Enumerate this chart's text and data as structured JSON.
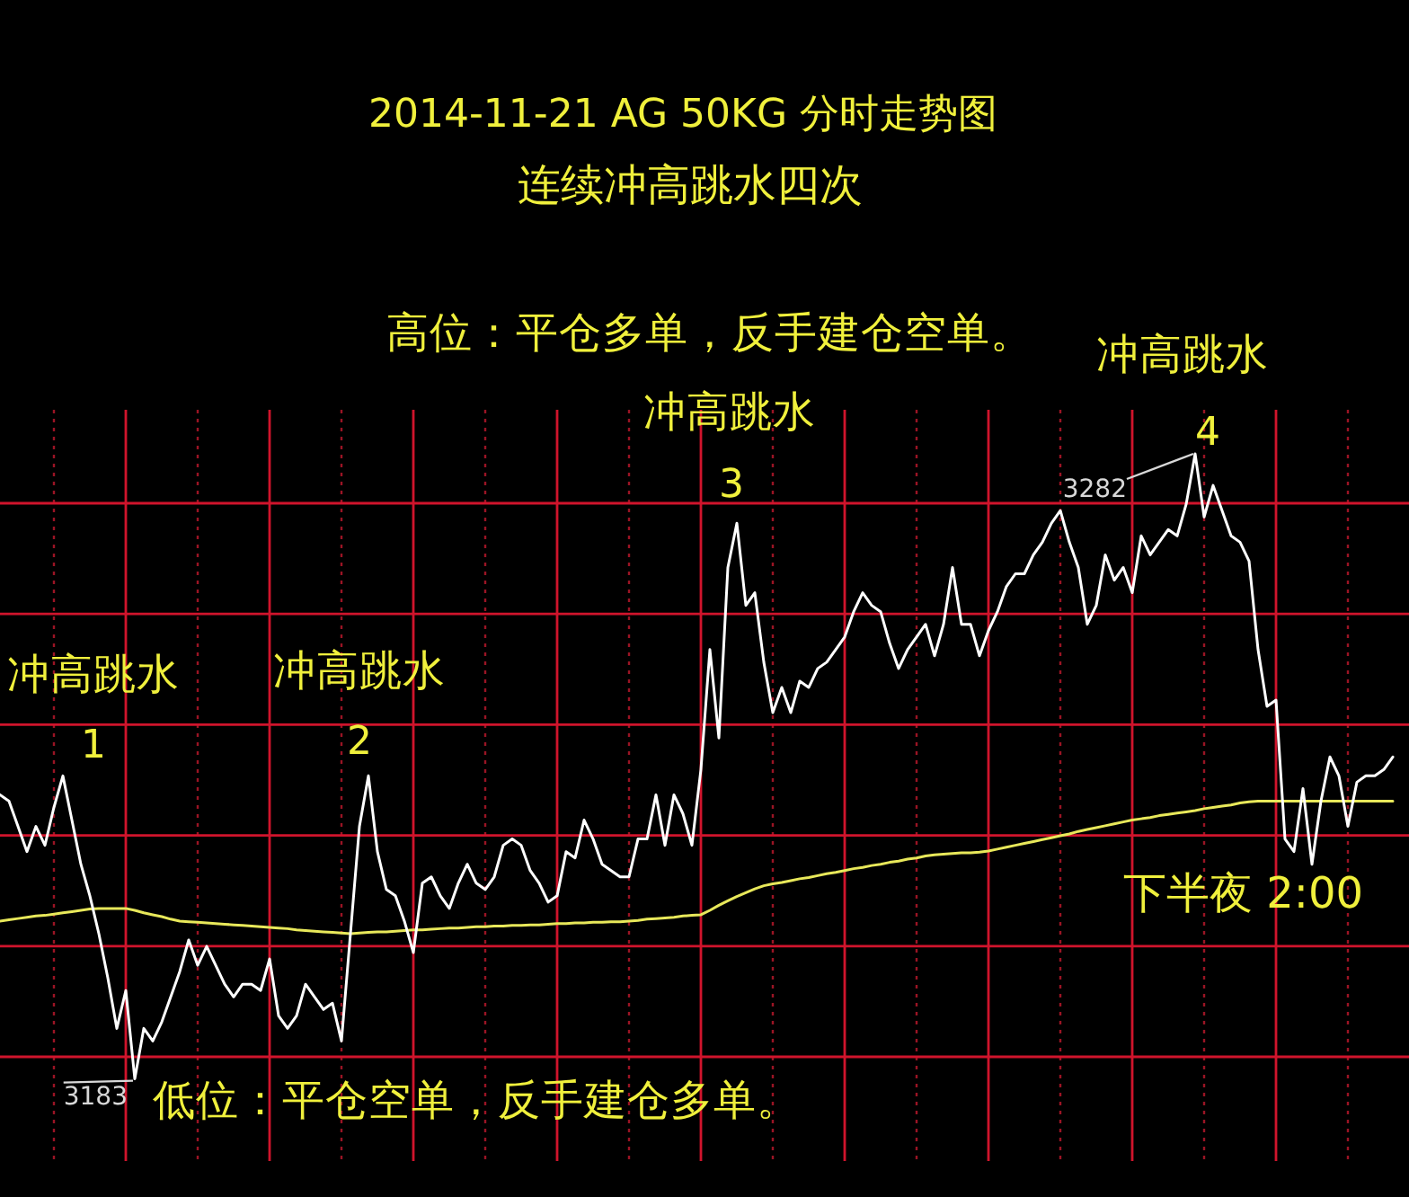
{
  "chart_data": {
    "type": "line",
    "title": "2014-11-21 AG 50KG 分时走势图",
    "subtitle": "连续冲高跳水四次",
    "grid": true,
    "categories": [
      null,
      null,
      null,
      null,
      null,
      null,
      null,
      null,
      null,
      null,
      null,
      null,
      null,
      null,
      null,
      null,
      null,
      null,
      null,
      null,
      null,
      null,
      null,
      null,
      null,
      null,
      null,
      null,
      null,
      null,
      null,
      null,
      null,
      null,
      null,
      null,
      null,
      null,
      null,
      null,
      null,
      null,
      null,
      null,
      null,
      null,
      null,
      null,
      null,
      null,
      null,
      null,
      null,
      null,
      null,
      null,
      null,
      null,
      null,
      null,
      null,
      null,
      null,
      null,
      null,
      null,
      null,
      null,
      null,
      null,
      null,
      null,
      null,
      null,
      null,
      null,
      null,
      null,
      null,
      null,
      null,
      null,
      null,
      null,
      null,
      null,
      null,
      null,
      null,
      null,
      null,
      null,
      null,
      null,
      null,
      null,
      null,
      null,
      null,
      null,
      null,
      null,
      null,
      null,
      null,
      null,
      null,
      null,
      null,
      null,
      null,
      null,
      null,
      null,
      null,
      null,
      null,
      null,
      null,
      null,
      null,
      null,
      null,
      null,
      null,
      null,
      null,
      null,
      null,
      null,
      null,
      null,
      null,
      null,
      null,
      null,
      null,
      null,
      null,
      null,
      null,
      null,
      null,
      null,
      null,
      null,
      null,
      null,
      null,
      null,
      null,
      null,
      null,
      null,
      null,
      null
    ],
    "series": [
      {
        "color": "#e8e85a",
        "values": [
          3208,
          3208.2,
          3208.4,
          3208.6,
          3208.8,
          3208.9,
          3209.1,
          3209.3,
          3209.5,
          3209.7,
          3209.9,
          3210,
          3210,
          3210,
          3210,
          3209.7,
          3209.3,
          3209,
          3208.7,
          3208.3,
          3208,
          3207.9,
          3207.8,
          3207.7,
          3207.6,
          3207.5,
          3207.4,
          3207.3,
          3207.2,
          3207.1,
          3207,
          3206.9,
          3206.8,
          3206.6,
          3206.5,
          3206.4,
          3206.3,
          3206.2,
          3206.1,
          3206,
          3206.1,
          3206.2,
          3206.3,
          3206.3,
          3206.4,
          3206.5,
          3206.6,
          3206.6,
          3206.7,
          3206.8,
          3206.9,
          3206.9,
          3207,
          3207.1,
          3207.1,
          3207.2,
          3207.2,
          3207.3,
          3207.3,
          3207.4,
          3207.4,
          3207.5,
          3207.6,
          3207.6,
          3207.7,
          3207.7,
          3207.8,
          3207.8,
          3207.9,
          3207.9,
          3208,
          3208.1,
          3208.3,
          3208.4,
          3208.5,
          3208.6,
          3208.8,
          3208.9,
          3209,
          3209.7,
          3210.5,
          3211.2,
          3211.9,
          3212.5,
          3213.1,
          3213.6,
          3213.9,
          3214.1,
          3214.4,
          3214.7,
          3214.9,
          3215.2,
          3215.5,
          3215.7,
          3216,
          3216.3,
          3216.5,
          3216.8,
          3217,
          3217.3,
          3217.5,
          3217.8,
          3218,
          3218.3,
          3218.5,
          3218.6,
          3218.7,
          3218.8,
          3218.8,
          3218.9,
          3219.1,
          3219.4,
          3219.7,
          3220,
          3220.3,
          3220.6,
          3220.9,
          3221.2,
          3221.5,
          3221.8,
          3222.2,
          3222.5,
          3222.8,
          3223.1,
          3223.4,
          3223.7,
          3224,
          3224.2,
          3224.4,
          3224.7,
          3224.9,
          3225.1,
          3225.3,
          3225.5,
          3225.8,
          3226,
          3226.2,
          3226.4,
          3226.7,
          3226.9,
          3227,
          3227,
          3227,
          3227,
          3227,
          3227,
          3227,
          3227,
          3227,
          3227,
          3227,
          3227,
          3227,
          3227,
          3227,
          3227
        ]
      },
      {
        "color": "#ffffff",
        "values": [
          3228,
          3227,
          3223,
          3219,
          3223,
          3220,
          3226,
          3231,
          3224,
          3217,
          3212,
          3206,
          3199,
          3191,
          3197,
          3183,
          3191,
          3189,
          3192,
          3196,
          3200,
          3205,
          3201,
          3204,
          3201,
          3198,
          3196,
          3198,
          3198,
          3197,
          3202,
          3193,
          3191,
          3193,
          3198,
          3196,
          3194,
          3195,
          3189,
          3206,
          3223,
          3231,
          3219,
          3213,
          3212,
          3208,
          3203,
          3214,
          3215,
          3212,
          3210,
          3214,
          3217,
          3214,
          3213,
          3215,
          3220,
          3221,
          3220,
          3216,
          3214,
          3211,
          3212,
          3219,
          3218,
          3224,
          3221,
          3217,
          3216,
          3215,
          3215,
          3221,
          3221,
          3228,
          3220,
          3228,
          3225,
          3220,
          3232,
          3251,
          3237,
          3264,
          3271,
          3258,
          3260,
          3249,
          3241,
          3245,
          3241,
          3246,
          3245,
          3248,
          3249,
          3251,
          3253,
          3257,
          3260,
          3258,
          3257,
          3252,
          3248,
          3251,
          3253,
          3255,
          3250,
          3255,
          3264,
          3255,
          3255,
          3250,
          3254,
          3257,
          3261,
          3263,
          3263,
          3266,
          3268,
          3271,
          3273,
          3268,
          3264,
          3255,
          3258,
          3266,
          3262,
          3264,
          3260,
          3269,
          3266,
          3268,
          3270,
          3269,
          3274,
          3282,
          3272,
          3277,
          3273,
          3269,
          3268,
          3265,
          3251,
          3242,
          3243,
          3221,
          3219,
          3229,
          3217,
          3227,
          3234,
          3231,
          3223,
          3230,
          3231,
          3231,
          3232,
          3234
        ],
        "value_labels": [
          null,
          null,
          null,
          null,
          null,
          null,
          null,
          null,
          null,
          null,
          null,
          null,
          null,
          null,
          null,
          "3183",
          null,
          null,
          null,
          null,
          null,
          null,
          null,
          null,
          null,
          null,
          null,
          null,
          null,
          null,
          null,
          null,
          null,
          null,
          null,
          null,
          null,
          null,
          null,
          null,
          null,
          null,
          null,
          null,
          null,
          null,
          null,
          null,
          null,
          null,
          null,
          null,
          null,
          null,
          null,
          null,
          null,
          null,
          null,
          null,
          null,
          null,
          null,
          null,
          null,
          null,
          null,
          null,
          null,
          null,
          null,
          null,
          null,
          null,
          null,
          null,
          null,
          null,
          null,
          null,
          null,
          null,
          null,
          null,
          null,
          null,
          null,
          null,
          null,
          null,
          null,
          null,
          null,
          null,
          null,
          null,
          null,
          null,
          null,
          null,
          null,
          null,
          null,
          null,
          null,
          null,
          null,
          null,
          null,
          null,
          null,
          null,
          null,
          null,
          null,
          null,
          null,
          null,
          null,
          null,
          null,
          null,
          null,
          null,
          null,
          null,
          null,
          null,
          null,
          null,
          null,
          null,
          null,
          "3282",
          null,
          null,
          null,
          null,
          null,
          null,
          null,
          null,
          null,
          null,
          null,
          null,
          null,
          null,
          null,
          null,
          null,
          null,
          null,
          null,
          null,
          null
        ]
      }
    ],
    "annotations": [
      "1",
      "冲高跳水",
      "2",
      "冲高跳水",
      "3",
      "冲高跳水",
      "4",
      "冲高跳水",
      "高位：平仓多单，反手建仓空单。",
      "低位：平仓空单，反手建仓多单。",
      "下半夜 2:00"
    ]
  }
}
